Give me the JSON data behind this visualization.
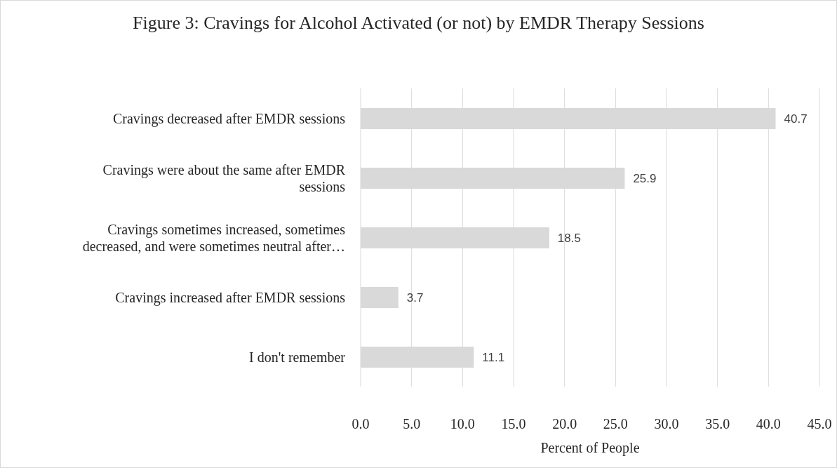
{
  "chart_data": {
    "type": "bar",
    "orientation": "horizontal",
    "title": "Figure 3: Cravings for Alcohol Activated (or not) by EMDR Therapy Sessions",
    "xlabel": "Percent of People",
    "categories": [
      "Cravings decreased after EMDR sessions",
      "Cravings were about the same after EMDR sessions",
      "Cravings sometimes increased, sometimes decreased, and were sometimes neutral after…",
      "Cravings increased after EMDR sessions",
      "I don't remember"
    ],
    "values": [
      40.7,
      25.9,
      18.5,
      3.7,
      11.1
    ],
    "color": "#d9d9d9",
    "data_labels": true,
    "xlim": [
      0,
      45
    ],
    "xticks": [
      {
        "value": 0,
        "label": "0.0"
      },
      {
        "value": 5,
        "label": "5.0"
      },
      {
        "value": 10,
        "label": "10.0"
      },
      {
        "value": 15,
        "label": "15.0"
      },
      {
        "value": 20,
        "label": "20.0"
      },
      {
        "value": 25,
        "label": "25.0"
      },
      {
        "value": 30,
        "label": "30.0"
      },
      {
        "value": 35,
        "label": "35.0"
      },
      {
        "value": 40,
        "label": "40.0"
      },
      {
        "value": 45,
        "label": "45.0"
      }
    ],
    "grid": "x",
    "legend": false
  }
}
